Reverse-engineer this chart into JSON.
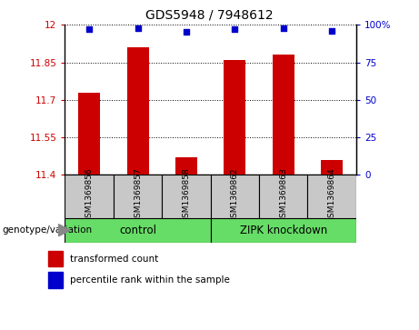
{
  "title": "GDS5948 / 7948612",
  "samples": [
    "GSM1369856",
    "GSM1369857",
    "GSM1369858",
    "GSM1369862",
    "GSM1369863",
    "GSM1369864"
  ],
  "bar_values": [
    11.73,
    11.91,
    11.47,
    11.86,
    11.88,
    11.46
  ],
  "percentile_values": [
    97,
    98,
    95,
    97,
    98,
    96
  ],
  "bar_color": "#cc0000",
  "dot_color": "#0000cc",
  "ylim_left": [
    11.4,
    12.0
  ],
  "ylim_right": [
    0,
    100
  ],
  "yticks_left": [
    11.4,
    11.55,
    11.7,
    11.85,
    12.0
  ],
  "yticks_right": [
    0,
    25,
    50,
    75,
    100
  ],
  "ytick_labels_left": [
    "11.4",
    "11.55",
    "11.7",
    "11.85",
    "12"
  ],
  "ytick_labels_right": [
    "0",
    "25",
    "50",
    "75",
    "100%"
  ],
  "legend_bar_label": "transformed count",
  "legend_dot_label": "percentile rank within the sample",
  "bar_width": 0.45,
  "sample_box_color": "#c8c8c8",
  "group_color": "#66dd66",
  "genotype_label": "genotype/variation",
  "control_label": "control",
  "zipk_label": "ZIPK knockdown"
}
